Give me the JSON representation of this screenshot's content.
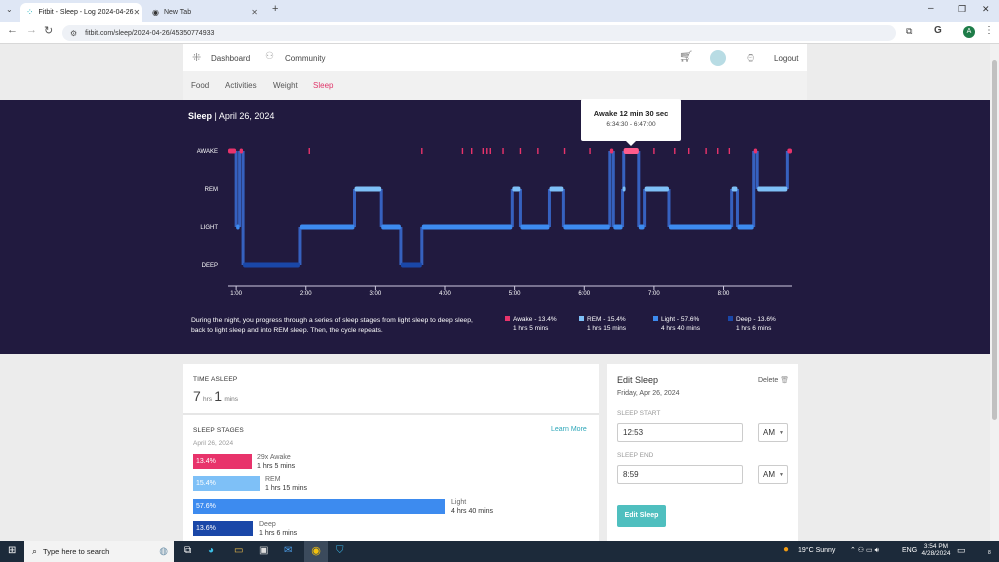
{
  "browser": {
    "tabs": [
      {
        "title": "Fitbit - Sleep - Log 2024-04-26"
      },
      {
        "title": "New Tab"
      }
    ],
    "url": "fitbit.com/sleep/2024-04-26/45350774933"
  },
  "fitbit": {
    "nav": {
      "dashboard": "Dashboard",
      "community": "Community",
      "logout": "Logout"
    },
    "subnav": [
      "Food",
      "Activities",
      "Weight",
      "Sleep"
    ],
    "colors": {
      "accent": "#e0366a",
      "awake": "#e8336b",
      "rem": "#7ec0f7",
      "light": "#3d8bef",
      "deep": "#1a47a8",
      "hero_bg": "#211a3f",
      "button": "#4fbfbf"
    }
  },
  "hero": {
    "title": "Sleep",
    "date": "| April 26, 2024",
    "tooltip": {
      "title": "Awake 12 min 30 sec",
      "range": "6:34:30 - 6:47:00"
    },
    "description": "During the night, you progress through a series of sleep stages from light sleep to deep sleep, back to light sleep and into REM sleep. Then, the cycle repeats.",
    "legend": [
      {
        "label": "Awake - 13.4%",
        "duration": "1 hrs 5 mins"
      },
      {
        "label": "REM - 15.4%",
        "duration": "1 hrs 15 mins"
      },
      {
        "label": "Light - 57.6%",
        "duration": "4 hrs 40 mins"
      },
      {
        "label": "Deep - 13.6%",
        "duration": "1 hrs 6 mins"
      }
    ]
  },
  "chart_data": {
    "type": "line",
    "y_categories": [
      "AWAKE",
      "REM",
      "LIGHT",
      "DEEP"
    ],
    "x_ticks": [
      "1:00",
      "2:00",
      "3:00",
      "4:00",
      "5:00",
      "6:00",
      "7:00",
      "8:00"
    ],
    "x_range": [
      "0:53",
      "8:59"
    ],
    "segments": [
      {
        "stage": "AWAKE",
        "start": "0:53",
        "end": "1:00"
      },
      {
        "stage": "LIGHT",
        "start": "1:00",
        "end": "1:03"
      },
      {
        "stage": "AWAKE",
        "start": "1:03",
        "end": "1:06"
      },
      {
        "stage": "DEEP",
        "start": "1:06",
        "end": "1:55"
      },
      {
        "stage": "LIGHT",
        "start": "1:55",
        "end": "2:42"
      },
      {
        "stage": "REM",
        "start": "2:42",
        "end": "3:05"
      },
      {
        "stage": "LIGHT",
        "start": "3:05",
        "end": "3:22"
      },
      {
        "stage": "DEEP",
        "start": "3:22",
        "end": "3:40"
      },
      {
        "stage": "LIGHT",
        "start": "3:40",
        "end": "4:58"
      },
      {
        "stage": "REM",
        "start": "4:58",
        "end": "5:05"
      },
      {
        "stage": "LIGHT",
        "start": "5:05",
        "end": "5:30"
      },
      {
        "stage": "REM",
        "start": "5:30",
        "end": "5:42"
      },
      {
        "stage": "LIGHT",
        "start": "5:42",
        "end": "6:22"
      },
      {
        "stage": "AWAKE",
        "start": "6:22",
        "end": "6:25"
      },
      {
        "stage": "LIGHT",
        "start": "6:25",
        "end": "6:33"
      },
      {
        "stage": "REM",
        "start": "6:33",
        "end": "6:34"
      },
      {
        "stage": "AWAKE",
        "start": "6:34",
        "end": "6:47"
      },
      {
        "stage": "LIGHT",
        "start": "6:47",
        "end": "6:52"
      },
      {
        "stage": "REM",
        "start": "6:52",
        "end": "7:13"
      },
      {
        "stage": "LIGHT",
        "start": "7:13",
        "end": "8:07"
      },
      {
        "stage": "REM",
        "start": "8:07",
        "end": "8:12"
      },
      {
        "stage": "LIGHT",
        "start": "8:12",
        "end": "8:26"
      },
      {
        "stage": "AWAKE",
        "start": "8:26",
        "end": "8:29"
      },
      {
        "stage": "REM",
        "start": "8:29",
        "end": "8:55"
      },
      {
        "stage": "AWAKE",
        "start": "8:55",
        "end": "8:59"
      }
    ],
    "brief_awake_marks": [
      "2:03",
      "3:40",
      "4:15",
      "4:23",
      "4:33",
      "4:36",
      "4:39",
      "4:50",
      "5:05",
      "5:20",
      "5:43",
      "6:05",
      "6:40",
      "7:00",
      "7:18",
      "7:30",
      "7:45",
      "7:55",
      "8:05"
    ]
  },
  "time_asleep": {
    "label": "TIME ASLEEP",
    "hours": "7",
    "hours_unit": "hrs",
    "mins": "1",
    "mins_unit": "mins"
  },
  "sleep_stages": {
    "label": "SLEEP STAGES",
    "learn_more": "Learn More",
    "date": "April 26, 2024",
    "rows": [
      {
        "pct": "13.4%",
        "value": 13.4,
        "name": "29x Awake",
        "duration": "1 hrs 5 mins"
      },
      {
        "pct": "15.4%",
        "value": 15.4,
        "name": "REM",
        "duration": "1 hrs 15 mins"
      },
      {
        "pct": "57.6%",
        "value": 57.6,
        "name": "Light",
        "duration": "4 hrs 40 mins"
      },
      {
        "pct": "13.6%",
        "value": 13.6,
        "name": "Deep",
        "duration": "1 hrs 6 mins"
      }
    ]
  },
  "edit_sleep": {
    "title": "Edit Sleep",
    "delete": "Delete",
    "date": "Friday, Apr 26, 2024",
    "start_label": "SLEEP START",
    "start_value": "12:53",
    "start_ampm": "AM",
    "end_label": "SLEEP END",
    "end_value": "8:59",
    "end_ampm": "AM",
    "button": "Edit Sleep"
  },
  "taskbar": {
    "search_placeholder": "Type here to search",
    "weather": "19°C  Sunny",
    "lang": "ENG",
    "time": "3:54 PM",
    "date": "4/28/2024",
    "notifications": "8"
  }
}
